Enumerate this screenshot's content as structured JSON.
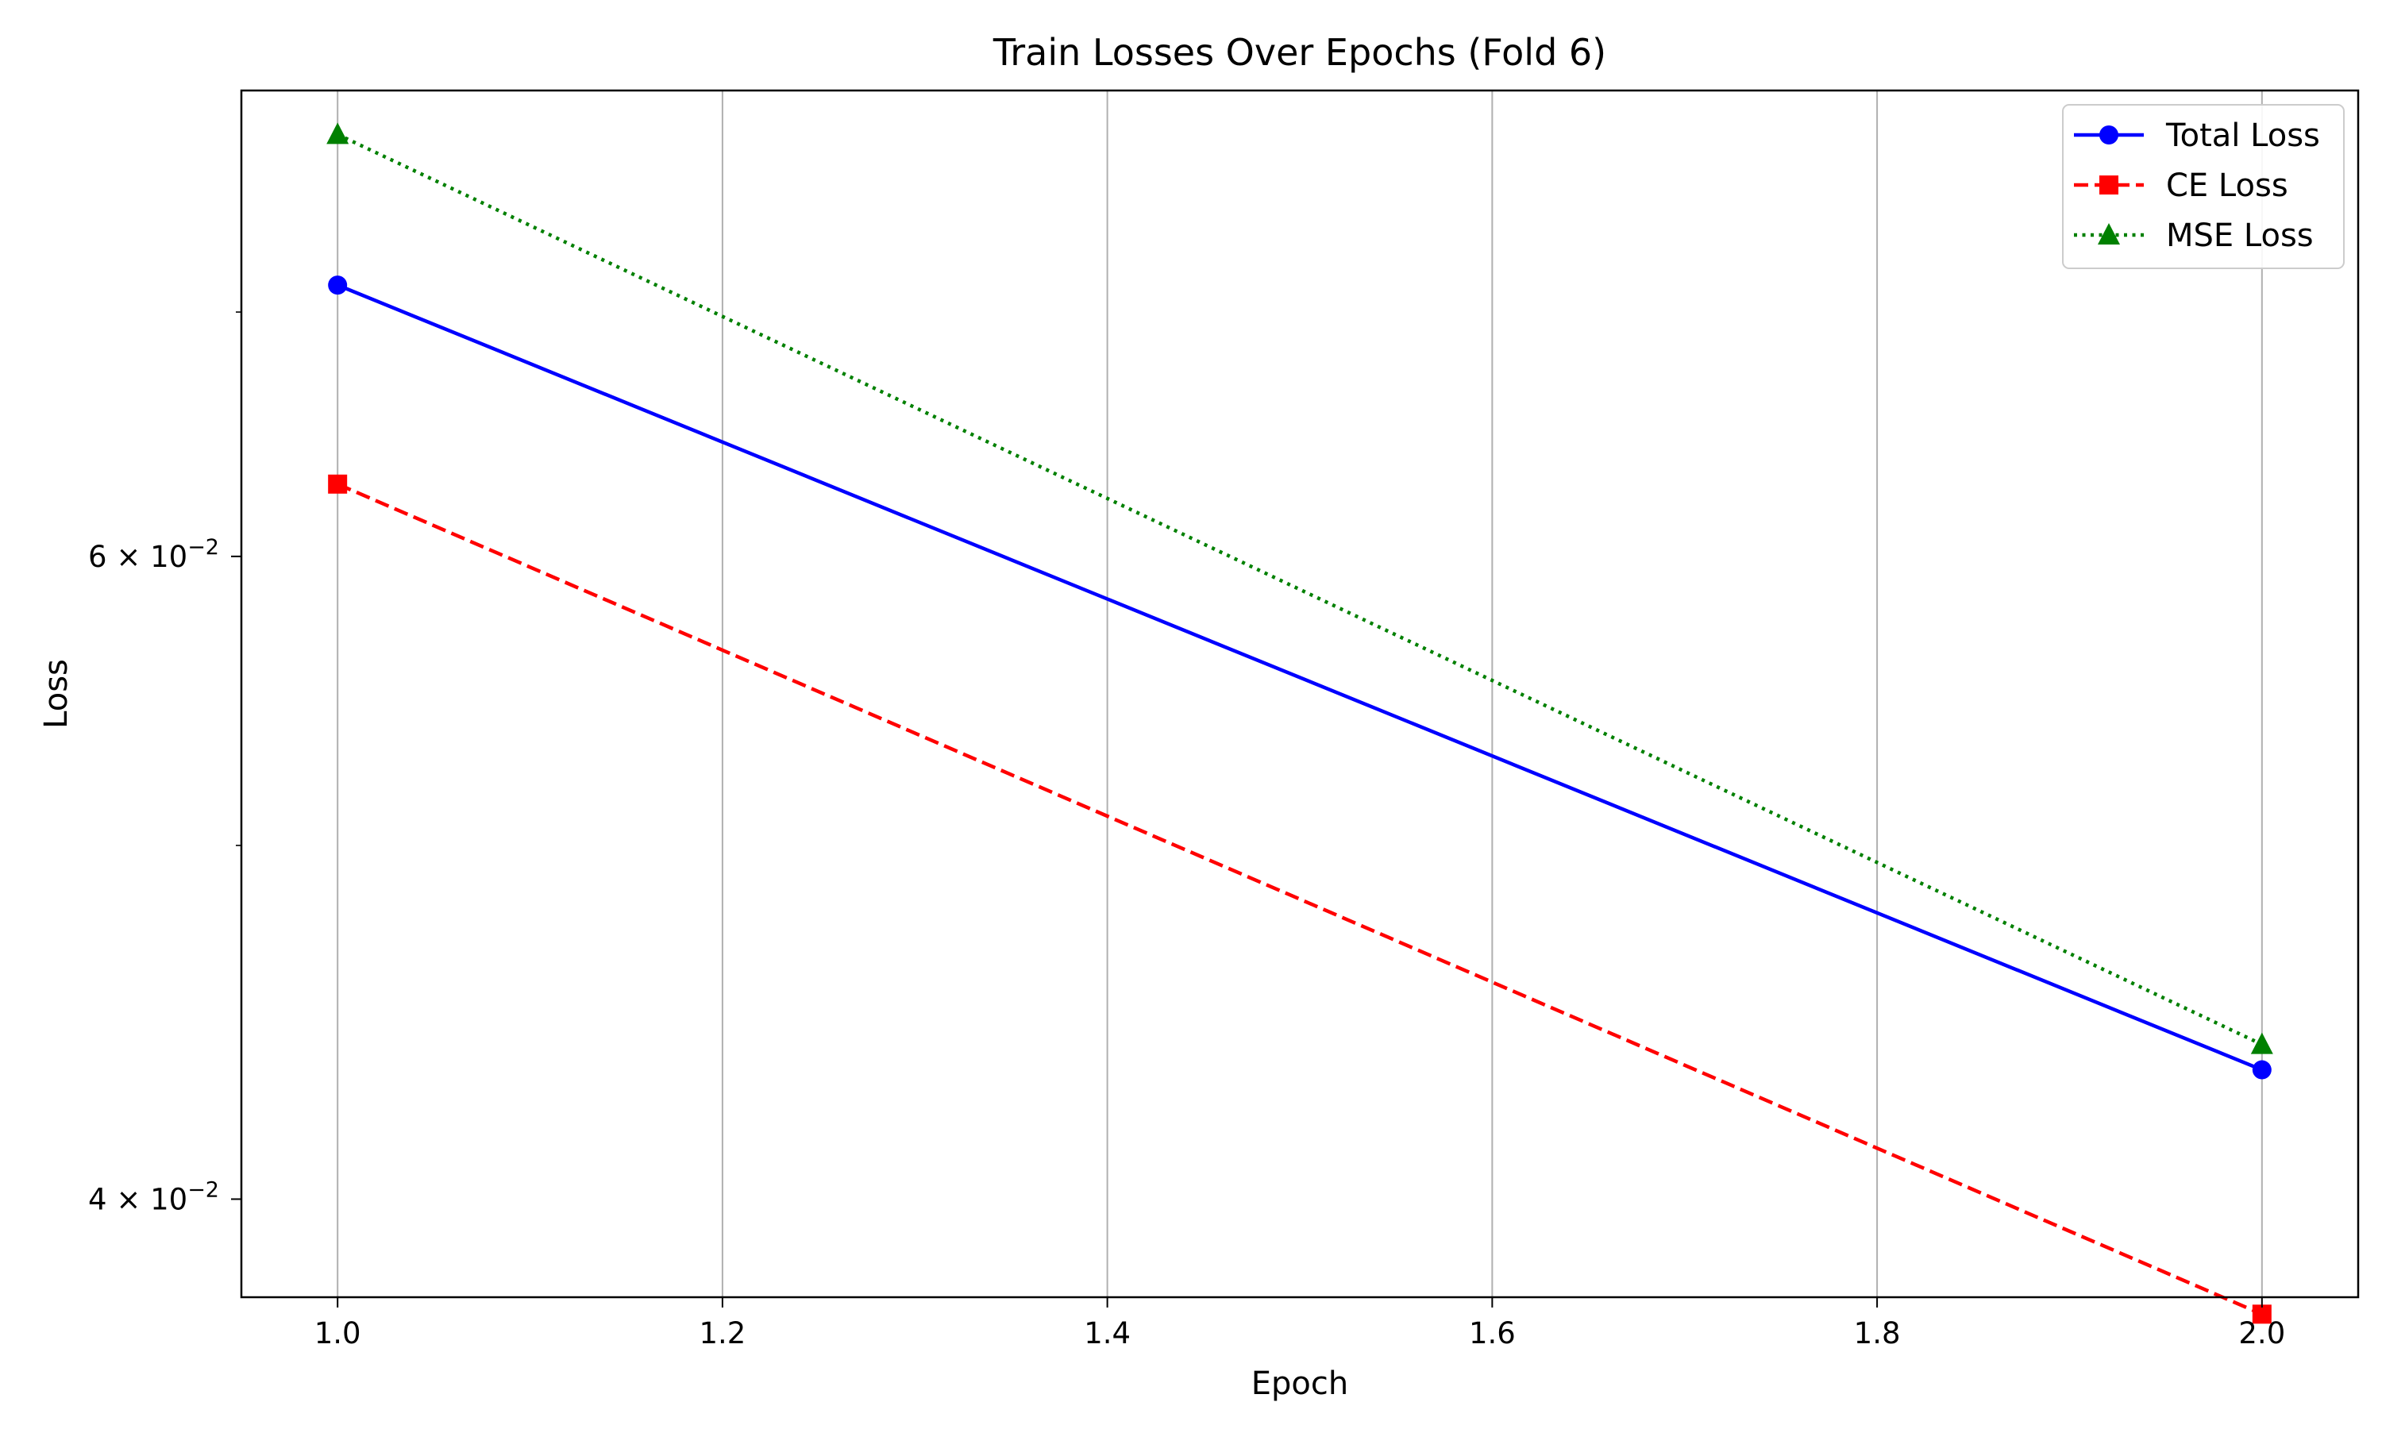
{
  "chart_data": {
    "type": "line",
    "title": "Train Losses Over Epochs (Fold 6)",
    "xlabel": "Epoch",
    "ylabel": "Loss",
    "x": [
      1.0,
      2.0
    ],
    "xlim": [
      0.95,
      2.05
    ],
    "ylim": [
      0.0376,
      0.0805
    ],
    "yscale": "log",
    "x_ticks": [
      1.0,
      1.2,
      1.4,
      1.6,
      1.8,
      2.0
    ],
    "x_tick_labels": [
      "1.0",
      "1.2",
      "1.4",
      "1.6",
      "1.8",
      "2.0"
    ],
    "y_ticks": [
      {
        "value": 0.04,
        "mantissa": "4",
        "exponent": "−2"
      },
      {
        "value": 0.06,
        "mantissa": "6",
        "exponent": "−2"
      }
    ],
    "y_minor_ticks": [
      0.05,
      0.07
    ],
    "grid": "vertical",
    "legend_position": "top-right",
    "series": [
      {
        "name": "Total Loss",
        "values": [
          0.0712,
          0.0434
        ],
        "color": "#0000ff",
        "linestyle": "solid",
        "marker": "circle"
      },
      {
        "name": "CE Loss",
        "values": [
          0.0628,
          0.0372
        ],
        "color": "#ff0000",
        "linestyle": "dashed",
        "marker": "square"
      },
      {
        "name": "MSE Loss",
        "values": [
          0.0783,
          0.0441
        ],
        "color": "#008000",
        "linestyle": "dotted",
        "marker": "triangle"
      }
    ]
  }
}
